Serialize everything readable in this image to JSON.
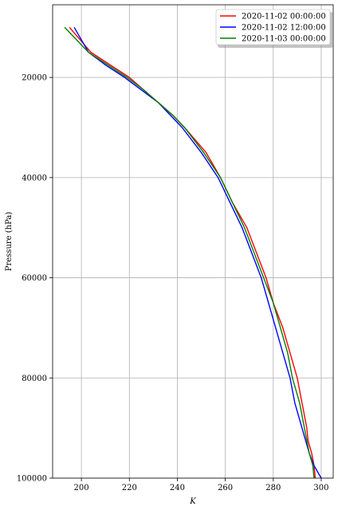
{
  "chart_data": {
    "type": "line",
    "title": "",
    "xlabel": "K",
    "ylabel": "Pressure (hPa)",
    "xlim": [
      188,
      305
    ],
    "ylim": [
      100000,
      5500
    ],
    "y_inverted": true,
    "grid": true,
    "legend_placement": "top-right",
    "xticks": [
      200,
      220,
      240,
      260,
      280,
      300
    ],
    "yticks": [
      20000,
      40000,
      60000,
      80000,
      100000
    ],
    "series": [
      {
        "name": "2020-11-02 00:00:00",
        "color": "#ff0000",
        "points": [
          [
            195,
            10000
          ],
          [
            204,
            15000
          ],
          [
            212,
            17500
          ],
          [
            220,
            20000
          ],
          [
            226,
            22500
          ],
          [
            232,
            25000
          ],
          [
            238,
            27500
          ],
          [
            243,
            30000
          ],
          [
            252,
            35000
          ],
          [
            258,
            40000
          ],
          [
            263,
            45000
          ],
          [
            269,
            50000
          ],
          [
            273,
            55000
          ],
          [
            277,
            60000
          ],
          [
            280,
            65000
          ],
          [
            284,
            70000
          ],
          [
            287,
            75000
          ],
          [
            290,
            80000
          ],
          [
            292,
            85000
          ],
          [
            294,
            90000
          ],
          [
            294.5,
            92500
          ],
          [
            296,
            95000
          ],
          [
            297,
            97500
          ],
          [
            297.5,
            100000
          ]
        ]
      },
      {
        "name": "2020-11-02 12:00:00",
        "color": "#0000ff",
        "points": [
          [
            197,
            10000
          ],
          [
            203,
            15000
          ],
          [
            210,
            17500
          ],
          [
            218,
            20000
          ],
          [
            225,
            22500
          ],
          [
            232,
            25000
          ],
          [
            237,
            27500
          ],
          [
            242,
            30000
          ],
          [
            250,
            35000
          ],
          [
            257,
            40000
          ],
          [
            262,
            45000
          ],
          [
            267,
            50000
          ],
          [
            271,
            55000
          ],
          [
            275,
            60000
          ],
          [
            278,
            65000
          ],
          [
            281,
            70000
          ],
          [
            284,
            75000
          ],
          [
            287,
            80000
          ],
          [
            289,
            85000
          ],
          [
            292,
            90000
          ],
          [
            293.5,
            92500
          ],
          [
            295,
            95000
          ],
          [
            297,
            97500
          ],
          [
            300,
            100000
          ]
        ]
      },
      {
        "name": "2020-11-03 00:00:00",
        "color": "#008000",
        "points": [
          [
            193,
            10000
          ],
          [
            203,
            15000
          ],
          [
            211,
            17500
          ],
          [
            219,
            20000
          ],
          [
            226,
            22500
          ],
          [
            232,
            25000
          ],
          [
            238,
            27500
          ],
          [
            243,
            30000
          ],
          [
            251,
            35000
          ],
          [
            258,
            40000
          ],
          [
            263,
            45000
          ],
          [
            268,
            50000
          ],
          [
            272,
            55000
          ],
          [
            276,
            60000
          ],
          [
            280,
            65000
          ],
          [
            283,
            70000
          ],
          [
            286,
            75000
          ],
          [
            288,
            80000
          ],
          [
            291,
            85000
          ],
          [
            293,
            90000
          ],
          [
            294,
            92500
          ],
          [
            295,
            95000
          ],
          [
            296.5,
            97500
          ],
          [
            297,
            100000
          ]
        ]
      }
    ]
  }
}
